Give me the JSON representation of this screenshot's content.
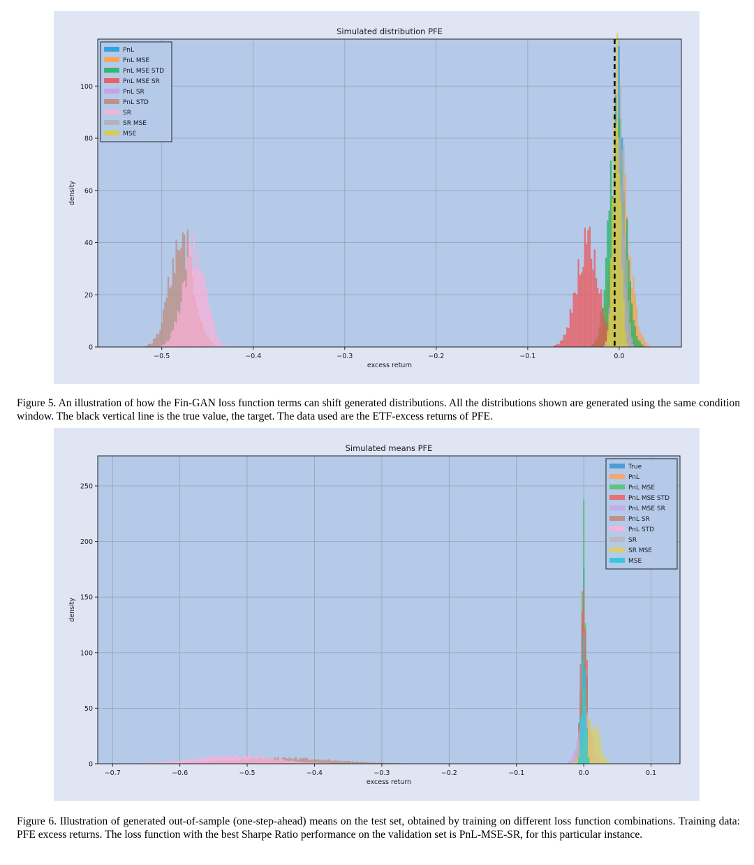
{
  "figures": [
    {
      "caption": "Figure 5.  An illustration of how the Fin-GAN loss function terms can shift generated distributions. All the distributions shown are generated using the same condition window. The black vertical line is the true value, the target. The data used are the ETF-excess returns of PFE.",
      "chart_data": {
        "type": "histogram",
        "title": "Simulated distribution PFE",
        "xlabel": "excess return",
        "ylabel": "density",
        "xlim": [
          -0.57,
          0.068
        ],
        "ylim": [
          0,
          118
        ],
        "xticks": [
          -0.5,
          -0.4,
          -0.3,
          -0.2,
          -0.1,
          0.0
        ],
        "xtick_labels": [
          "−0.5",
          "−0.4",
          "−0.3",
          "−0.2",
          "−0.1",
          "0.0"
        ],
        "yticks": [
          0,
          20,
          40,
          60,
          80,
          100
        ],
        "ytick_labels": [
          "0",
          "20",
          "40",
          "60",
          "80",
          "100"
        ],
        "grid": true,
        "legend_position": "upper-left",
        "true_value_line": {
          "x": -0.005,
          "style": "dashed",
          "color": "#000000"
        },
        "series": [
          {
            "name": "PnL",
            "color": "#1f9be0",
            "dist": {
              "center": 0.0,
              "sd": 0.006,
              "peak": 100
            }
          },
          {
            "name": "PnL MSE",
            "color": "#ffa040",
            "dist": {
              "center": 0.002,
              "sd": 0.01,
              "peak": 60
            }
          },
          {
            "name": "PnL MSE STD",
            "color": "#1fb35a",
            "dist": {
              "center": -0.002,
              "sd": 0.009,
              "peak": 80
            }
          },
          {
            "name": "PnL MSE SR",
            "color": "#f05050",
            "dist": {
              "center": -0.035,
              "sd": 0.012,
              "peak": 40
            }
          },
          {
            "name": "PnL SR",
            "color": "#c79be3",
            "dist": {
              "center": -0.001,
              "sd": 0.005,
              "peak": 90
            }
          },
          {
            "name": "PnL STD",
            "color": "#bc8a78",
            "dist": {
              "center": -0.478,
              "sd": 0.013,
              "peak": 42
            }
          },
          {
            "name": "SR",
            "color": "#ffb0d8",
            "dist": {
              "center": -0.465,
              "sd": 0.012,
              "peak": 38
            }
          },
          {
            "name": "SR MSE",
            "color": "#b0b0b0",
            "dist": {
              "center": 0.001,
              "sd": 0.005,
              "peak": 95
            }
          },
          {
            "name": "MSE",
            "color": "#d8d030",
            "dist": {
              "center": -0.003,
              "sd": 0.004,
              "peak": 112
            }
          }
        ]
      }
    },
    {
      "caption": "Figure 6.  Illustration of generated out-of-sample (one-step-ahead) means on the test set, obtained by training on different loss function combinations. Training data: PFE excess returns. The loss function with the best Sharpe Ratio performance on the validation set is PnL-MSE-SR, for this particular instance.",
      "chart_data": {
        "type": "histogram",
        "title": "Simulated means PFE",
        "xlabel": "excess return",
        "ylabel": "density",
        "xlim": [
          -0.722,
          0.143
        ],
        "ylim": [
          0,
          277
        ],
        "xticks": [
          -0.7,
          -0.6,
          -0.5,
          -0.4,
          -0.3,
          -0.2,
          -0.1,
          0.0,
          0.1
        ],
        "xtick_labels": [
          "−0.7",
          "−0.6",
          "−0.5",
          "−0.4",
          "−0.3",
          "−0.2",
          "−0.1",
          "0.0",
          "0.1"
        ],
        "yticks": [
          0,
          50,
          100,
          150,
          200,
          250
        ],
        "ytick_labels": [
          "0",
          "50",
          "100",
          "150",
          "200",
          "250"
        ],
        "grid": true,
        "legend_position": "upper-right",
        "series": [
          {
            "name": "True",
            "color": "#3a96cf",
            "dist": {
              "center": 0.0,
              "sd": 0.004,
              "peak": 150
            }
          },
          {
            "name": "PnL",
            "color": "#ffa060",
            "dist": {
              "center": 0.0,
              "sd": 0.006,
              "peak": 90
            }
          },
          {
            "name": "PnL MSE",
            "color": "#4ec46a",
            "dist": {
              "center": 0.0,
              "sd": 0.003,
              "peak": 205
            }
          },
          {
            "name": "PnL MSE STD",
            "color": "#f06060",
            "dist": {
              "center": 0.0,
              "sd": 0.004,
              "peak": 165
            }
          },
          {
            "name": "PnL MSE SR",
            "color": "#c8a8e8",
            "dist": {
              "center": 0.002,
              "sd": 0.01,
              "peak": 40
            }
          },
          {
            "name": "PnL SR",
            "color": "#c08a74",
            "dist": {
              "center": -0.45,
              "sd": 0.08,
              "peak": 5
            }
          },
          {
            "name": "PnL STD",
            "color": "#ffb0dc",
            "dist": {
              "center": -0.52,
              "sd": 0.06,
              "peak": 7
            }
          },
          {
            "name": "SR",
            "color": "#b8b8b8",
            "dist": {
              "center": 0.0,
              "sd": 0.005,
              "peak": 60
            }
          },
          {
            "name": "SR MSE",
            "color": "#dcd058",
            "dist": {
              "center": 0.012,
              "sd": 0.01,
              "peak": 40
            }
          },
          {
            "name": "MSE",
            "color": "#22c8d8",
            "dist": {
              "center": 0.0,
              "sd": 0.003,
              "peak": 120
            }
          }
        ]
      }
    }
  ]
}
